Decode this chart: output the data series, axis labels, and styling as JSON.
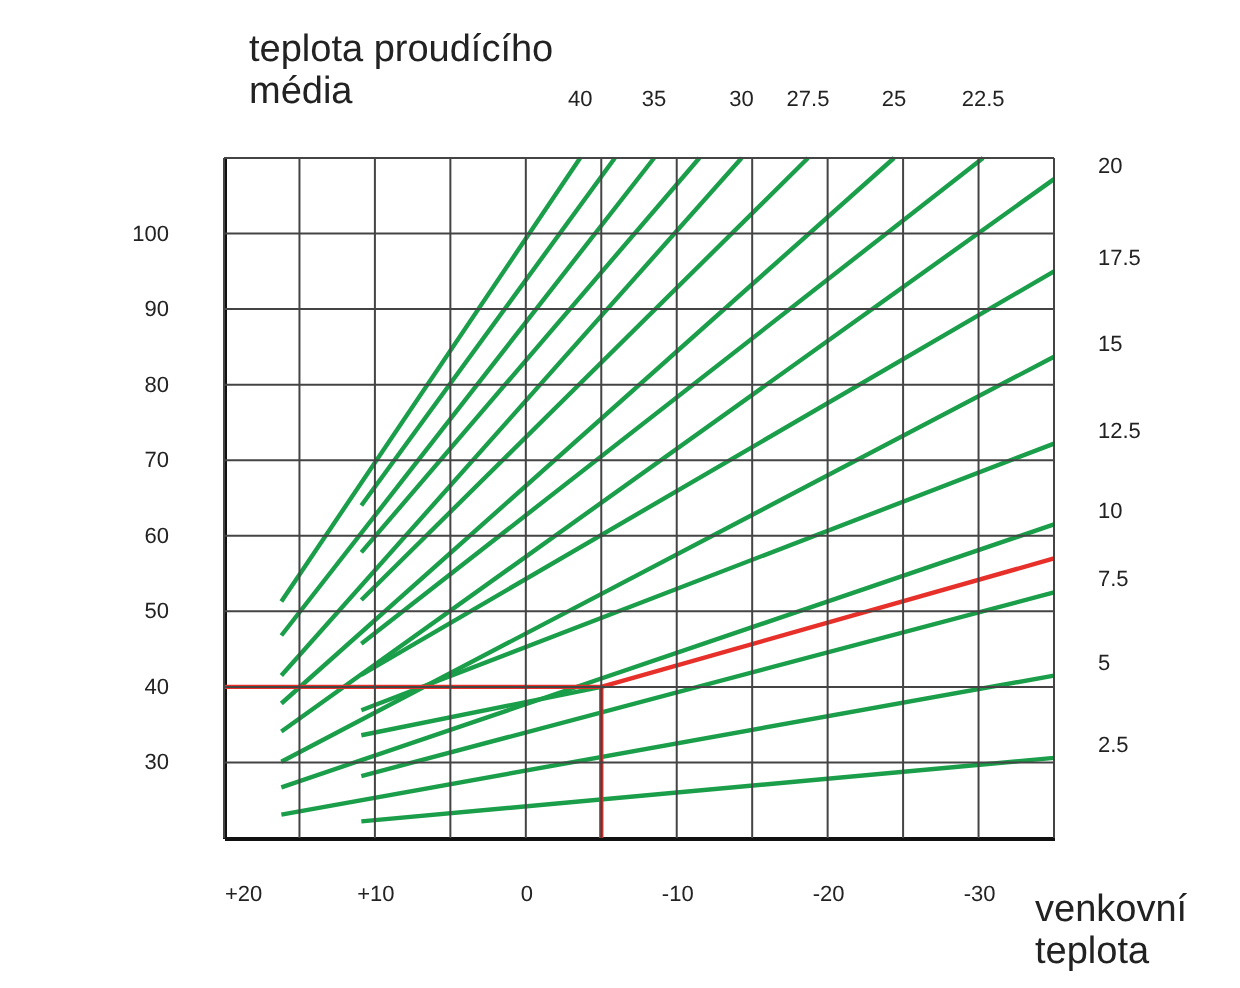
{
  "chart_data": {
    "type": "line",
    "xlabel": "venkovní\nteplota",
    "ylabel": "teplota proudícího\nmédia",
    "xlim": [
      20,
      -35
    ],
    "ylim": [
      20,
      110
    ],
    "xticks": [
      {
        "value": 20,
        "label": "+20"
      },
      {
        "value": 15,
        "label": null
      },
      {
        "value": 10,
        "label": "+10"
      },
      {
        "value": 5,
        "label": null
      },
      0,
      {
        "value": -5,
        "label": null
      },
      -10,
      {
        "value": -15,
        "label": null
      },
      -20,
      {
        "value": -25,
        "label": null
      },
      -30,
      {
        "value": -35,
        "label": null
      }
    ],
    "yticks": [
      30,
      40,
      50,
      60,
      70,
      80,
      90,
      100,
      {
        "value": 110,
        "label": null
      }
    ],
    "grid": true,
    "legend": false,
    "marker": "none",
    "line_style": "solid",
    "series": [
      {
        "name": "40",
        "color": "#1a9e4a",
        "x": [
          16.2,
          -3.6
        ],
        "values": [
          51.3,
          110
        ]
      },
      {
        "color": "#1a9e4a",
        "x": [
          10.9,
          -5.9
        ],
        "values": [
          64.0,
          110
        ]
      },
      {
        "name": "35",
        "color": "#1a9e4a",
        "x": [
          16.2,
          -8.5
        ],
        "values": [
          46.8,
          110
        ]
      },
      {
        "color": "#1a9e4a",
        "x": [
          10.9,
          -11.5
        ],
        "values": [
          57.8,
          110
        ]
      },
      {
        "name": "30",
        "color": "#1a9e4a",
        "x": [
          16.2,
          -14.3
        ],
        "values": [
          41.5,
          110
        ]
      },
      {
        "name": "27.5",
        "color": "#1a9e4a",
        "x": [
          10.9,
          -18.7
        ],
        "values": [
          51.5,
          110
        ]
      },
      {
        "name": "25",
        "color": "#1a9e4a",
        "x": [
          16.2,
          -24.4
        ],
        "values": [
          37.8,
          110
        ]
      },
      {
        "name": "22.5",
        "color": "#1a9e4a",
        "x": [
          10.9,
          -30.3
        ],
        "values": [
          45.7,
          110
        ]
      },
      {
        "name": "20",
        "color": "#1a9e4a",
        "x": [
          16.2,
          -35
        ],
        "values": [
          34.1,
          107.2
        ]
      },
      {
        "name": "17.5",
        "color": "#1a9e4a",
        "x": [
          10.9,
          -35
        ],
        "values": [
          41.6,
          95.0
        ]
      },
      {
        "name": "15",
        "color": "#1a9e4a",
        "x": [
          16.2,
          -35
        ],
        "values": [
          30.1,
          83.7
        ]
      },
      {
        "name": "12.5",
        "color": "#1a9e4a",
        "x": [
          10.9,
          -35
        ],
        "values": [
          36.9,
          72.2
        ]
      },
      {
        "name": "10",
        "color": "#1a9e4a",
        "x": [
          16.2,
          -35
        ],
        "values": [
          26.7,
          61.5
        ]
      },
      {
        "name": "7.5",
        "color": "#1a9e4a",
        "x": [
          10.9,
          -35
        ],
        "values": [
          28.2,
          52.5
        ]
      },
      {
        "name": "5",
        "color": "#1a9e4a",
        "x": [
          16.2,
          -35
        ],
        "values": [
          23.1,
          41.5
        ]
      },
      {
        "name": "2.5",
        "color": "#1a9e4a",
        "x": [
          10.9,
          -35
        ],
        "values": [
          22.2,
          30.6
        ]
      },
      {
        "color": "#1a9e4a",
        "x": [
          10.9,
          -5
        ],
        "values": [
          33.6,
          40
        ]
      },
      {
        "color": "#e8302a",
        "x": [
          20,
          -5,
          -35
        ],
        "values": [
          40,
          40,
          57
        ]
      },
      {
        "color": "#e8302a",
        "x": [
          -5,
          -5
        ],
        "values": [
          40,
          20
        ]
      }
    ]
  }
}
